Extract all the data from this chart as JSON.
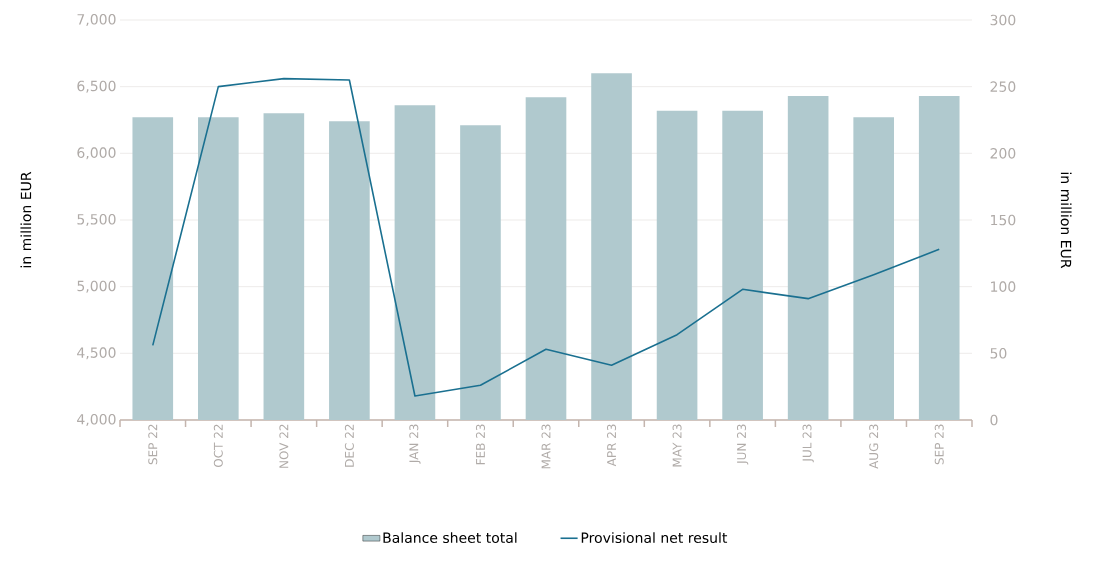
{
  "chart_data": {
    "type": "bar",
    "categories": [
      "SEP 22",
      "OCT 22",
      "NOV 22",
      "DEC 22",
      "JAN 23",
      "FEB 23",
      "MAR 23",
      "APR 23",
      "MAY 23",
      "JUN 23",
      "JUL 23",
      "AUG 23",
      "SEP 23"
    ],
    "series": [
      {
        "name": "Balance sheet total",
        "color": "#b0c9ce",
        "values": [
          6270,
          6270,
          6300,
          6240,
          6360,
          6210,
          6420,
          6600,
          6320,
          6320,
          6430,
          6270,
          6430
        ]
      },
      {
        "name": "Provisional net result",
        "type": "line",
        "axis": "y2",
        "color": "#1a7090",
        "values": [
          56,
          250,
          256,
          255,
          18,
          26,
          53,
          41,
          64,
          98,
          91,
          109,
          128
        ]
      }
    ],
    "ylim": [
      4000,
      7000
    ],
    "yticks": [
      {
        "value": 4000,
        "label": "4,000"
      },
      {
        "value": 4500,
        "label": "4,500"
      },
      {
        "value": 5000,
        "label": "5,000"
      },
      {
        "value": 5500,
        "label": "5,500"
      },
      {
        "value": 6000,
        "label": "6,000"
      },
      {
        "value": 6500,
        "label": "6,500"
      },
      {
        "value": 7000,
        "label": "7,000"
      }
    ],
    "y2lim": [
      0,
      300
    ],
    "y2ticks": [
      0,
      50,
      100,
      150,
      200,
      250,
      300
    ],
    "ylabel": "in million EUR",
    "y2label": "in million EUR",
    "grid": "y",
    "legend": "bottom"
  }
}
